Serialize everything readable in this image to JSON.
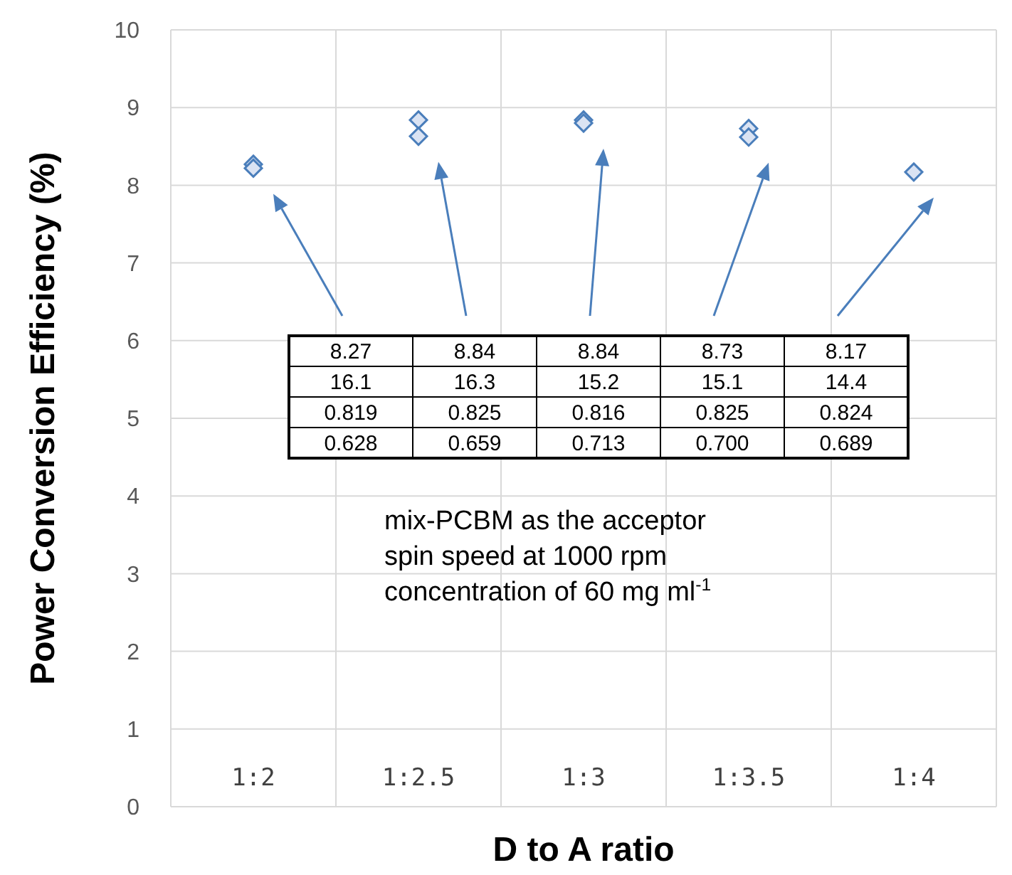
{
  "chart_data": {
    "type": "scatter",
    "xlabel": "D to A ratio",
    "ylabel": "Power Conversion Efficiency (%)",
    "categories": [
      "1:2",
      "1:2.5",
      "1:3",
      "1:3.5",
      "1:4"
    ],
    "series": [
      {
        "color": "#4a7ebb",
        "values": [
          8.27,
          8.84,
          8.84,
          8.73,
          8.17
        ]
      },
      {
        "color": "#4a7ebb",
        "values": [
          8.22,
          8.63,
          8.8,
          8.62,
          null
        ]
      }
    ],
    "ylim": [
      0,
      10
    ],
    "yticks": [
      0,
      1,
      2,
      3,
      4,
      5,
      6,
      7,
      8,
      9,
      10
    ],
    "grid": true,
    "marker": "diamond",
    "annotations": [
      "8.27",
      "8.84",
      "8.84",
      "8.73",
      "8.17",
      "16.1",
      "16.3",
      "15.2",
      "15.1",
      "14.4",
      "0.819",
      "0.825",
      "0.816",
      "0.825",
      "0.824",
      "0.628",
      "0.659",
      "0.713",
      "0.700",
      "0.689",
      "mix-PCBM as the acceptor",
      "spin speed at 1000 rpm",
      "concentration of 60 mg ml$^{-1}$"
    ]
  }
}
